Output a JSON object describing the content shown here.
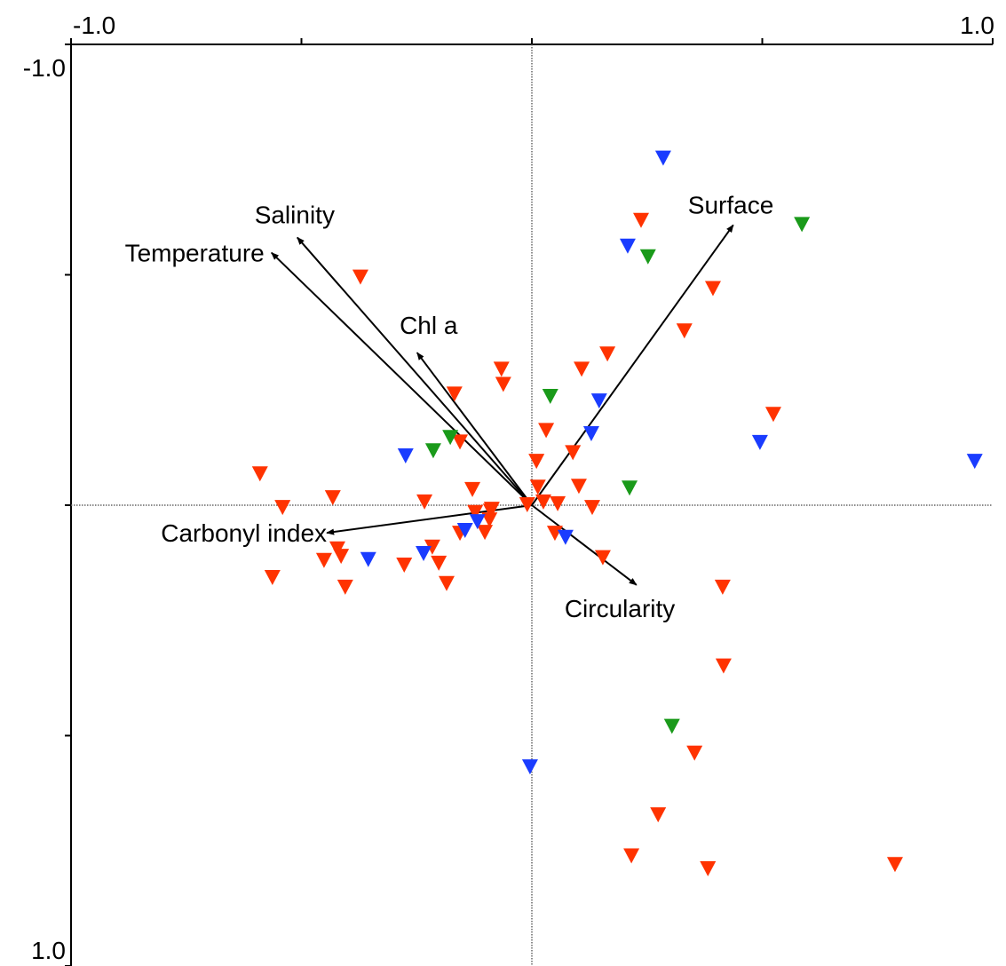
{
  "chart_data": {
    "type": "biplot",
    "xlim": [
      -1.0,
      1.0
    ],
    "ylim": [
      -1.0,
      1.0
    ],
    "xticks": [
      {
        "value": -1.0,
        "label": "-1.0"
      },
      {
        "value": -0.5,
        "label": null
      },
      {
        "value": 0,
        "label": null
      },
      {
        "value": 0.5,
        "label": null
      },
      {
        "value": 1.0,
        "label": "1.0"
      }
    ],
    "yticks": [
      {
        "value": -1.0,
        "label": "-1.0"
      },
      {
        "value": -0.5,
        "label": null
      },
      {
        "value": 0,
        "label": null
      },
      {
        "value": 0.5,
        "label": null
      },
      {
        "value": 1.0,
        "label": "1.0"
      }
    ],
    "y_inverted": true,
    "zero_lines": true,
    "arrows": {
      "names": [
        "Salinity",
        "Temperature",
        "Chl a",
        "Surface",
        "Carbonyl index",
        "Circularity"
      ],
      "x": [
        -0.509,
        -0.565,
        -0.249,
        0.437,
        -0.445,
        0.227
      ],
      "y": [
        -0.581,
        -0.548,
        -0.331,
        -0.608,
        0.06,
        0.173
      ]
    },
    "series": [
      {
        "color": "#ff3300",
        "x": [
          0.237,
          -0.372,
          0.393,
          0.331,
          0.164,
          0.108,
          -0.066,
          -0.062,
          -0.168,
          0.524,
          -0.156,
          0.031,
          0.089,
          0.01,
          -0.59,
          0.102,
          0.013,
          -0.432,
          -0.129,
          -0.233,
          -0.541,
          0.025,
          0.056,
          0.131,
          -0.01,
          -0.089,
          -0.123,
          -0.092,
          -0.087,
          -0.156,
          -0.102,
          0.05,
          -0.216,
          -0.422,
          -0.451,
          -0.414,
          -0.202,
          -0.277,
          0.154,
          -0.563,
          -0.405,
          -0.185,
          0.414,
          0.416,
          0.353,
          0.274,
          0.216,
          0.382,
          0.788
        ],
        "y": [
          -0.619,
          -0.496,
          -0.471,
          -0.379,
          -0.329,
          -0.296,
          -0.296,
          -0.263,
          -0.242,
          -0.198,
          -0.138,
          -0.163,
          -0.115,
          -0.096,
          -0.069,
          -0.042,
          -0.04,
          -0.017,
          -0.035,
          -0.008,
          0.004,
          -0.008,
          -0.004,
          0.004,
          -0.002,
          0.012,
          0.015,
          0.031,
          0.008,
          0.06,
          0.058,
          0.06,
          0.09,
          0.094,
          0.119,
          0.11,
          0.125,
          0.129,
          0.113,
          0.156,
          0.177,
          0.169,
          0.177,
          0.348,
          0.537,
          0.671,
          0.76,
          0.788,
          0.779
        ]
      },
      {
        "color": "#1a3cff",
        "x": [
          0.285,
          0.208,
          0.146,
          0.129,
          0.495,
          0.961,
          -0.274,
          -0.355,
          -0.235,
          -0.145,
          -0.118,
          0.073,
          -0.004
        ],
        "y": [
          -0.754,
          -0.563,
          -0.227,
          -0.156,
          -0.137,
          -0.096,
          -0.108,
          0.117,
          0.104,
          0.054,
          0.035,
          0.069,
          0.567
        ]
      },
      {
        "color": "#1a9a1a",
        "x": [
          0.586,
          0.252,
          0.04,
          -0.177,
          -0.214,
          0.212,
          0.304
        ],
        "y": [
          -0.61,
          -0.54,
          -0.237,
          -0.148,
          -0.119,
          -0.038,
          0.479
        ]
      }
    ]
  }
}
